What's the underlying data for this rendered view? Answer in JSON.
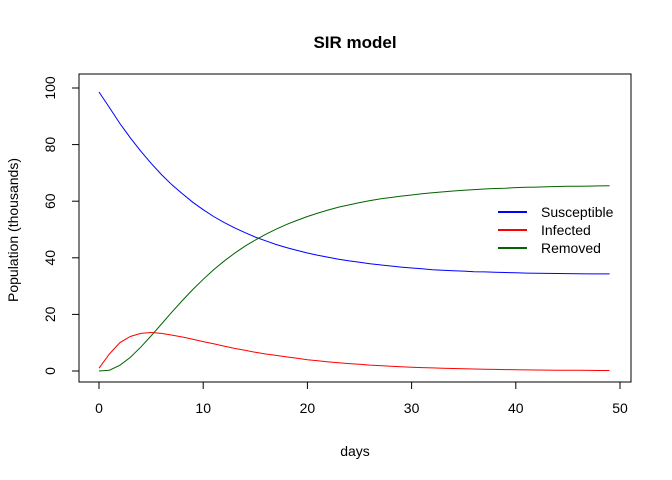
{
  "chart_data": {
    "type": "line",
    "title": "SIR model",
    "xlabel": "days",
    "ylabel": "Population (thousands)",
    "xlim": [
      0,
      50
    ],
    "ylim": [
      0,
      100
    ],
    "x_ticks": [
      0,
      10,
      20,
      30,
      40,
      50
    ],
    "y_ticks": [
      0,
      20,
      40,
      60,
      80,
      100
    ],
    "grid": false,
    "legend_position": "right",
    "x": [
      0,
      1,
      2,
      3,
      4,
      5,
      6,
      7,
      8,
      9,
      10,
      11,
      12,
      13,
      14,
      15,
      16,
      17,
      18,
      19,
      20,
      21,
      22,
      23,
      24,
      25,
      26,
      27,
      28,
      29,
      30,
      31,
      32,
      33,
      34,
      35,
      36,
      37,
      38,
      39,
      40,
      41,
      42,
      43,
      44,
      45,
      46,
      47,
      48,
      49
    ],
    "series": [
      {
        "name": "Susceptible",
        "color": "#0000ff",
        "values": [
          98.6,
          93.1,
          87.5,
          82.4,
          77.7,
          73.4,
          69.4,
          65.8,
          62.6,
          59.6,
          57.0,
          54.6,
          52.5,
          50.6,
          48.9,
          47.3,
          46.0,
          44.7,
          43.6,
          42.6,
          41.7,
          40.9,
          40.2,
          39.5,
          38.9,
          38.4,
          37.9,
          37.5,
          37.1,
          36.7,
          36.4,
          36.1,
          35.8,
          35.6,
          35.4,
          35.3,
          35.1,
          35.0,
          34.9,
          34.8,
          34.7,
          34.6,
          34.55,
          34.5,
          34.45,
          34.4,
          34.35,
          34.3,
          34.3,
          34.3
        ]
      },
      {
        "name": "Infected",
        "color": "#ff0000",
        "values": [
          1.0,
          6.0,
          10.0,
          12.2,
          13.3,
          13.6,
          13.3,
          12.7,
          12.0,
          11.2,
          10.4,
          9.6,
          8.8,
          8.0,
          7.3,
          6.6,
          6.0,
          5.5,
          5.0,
          4.5,
          4.0,
          3.6,
          3.2,
          2.9,
          2.6,
          2.35,
          2.1,
          1.9,
          1.7,
          1.5,
          1.35,
          1.2,
          1.08,
          0.97,
          0.87,
          0.78,
          0.7,
          0.63,
          0.56,
          0.5,
          0.45,
          0.4,
          0.36,
          0.32,
          0.29,
          0.26,
          0.23,
          0.21,
          0.19,
          0.17
        ]
      },
      {
        "name": "Removed",
        "color": "#006400",
        "values": [
          0.0,
          0.3,
          2.0,
          4.8,
          8.4,
          12.4,
          16.6,
          20.8,
          24.9,
          28.8,
          32.4,
          35.8,
          38.8,
          41.6,
          44.1,
          46.3,
          48.3,
          50.1,
          51.8,
          53.2,
          54.6,
          55.8,
          56.9,
          57.9,
          58.7,
          59.5,
          60.2,
          60.8,
          61.3,
          61.8,
          62.2,
          62.6,
          63.0,
          63.3,
          63.6,
          63.9,
          64.1,
          64.3,
          64.5,
          64.6,
          64.8,
          64.9,
          65.0,
          65.1,
          65.2,
          65.25,
          65.3,
          65.35,
          65.4,
          65.45
        ]
      }
    ]
  }
}
